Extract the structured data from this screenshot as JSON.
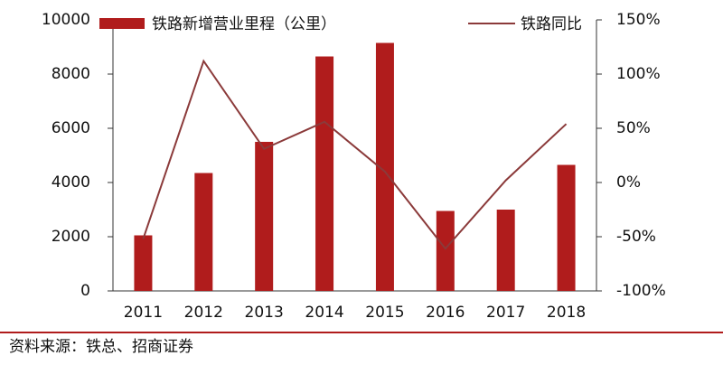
{
  "chart_data": {
    "type": "bar_line",
    "categories": [
      "2011",
      "2012",
      "2013",
      "2014",
      "2015",
      "2016",
      "2017",
      "2018"
    ],
    "series": [
      {
        "name": "铁路新增营业里程（公里）",
        "type": "bar",
        "color": "#b01c1c",
        "values": [
          2050,
          4350,
          5500,
          8650,
          9150,
          2950,
          3000,
          4650
        ]
      },
      {
        "name": "铁路同比",
        "type": "line",
        "axis": "y2",
        "color": "#8b3a3a",
        "values": [
          -52,
          112,
          31,
          56,
          10,
          -61,
          2,
          54
        ]
      }
    ],
    "ylim": [
      0,
      10000
    ],
    "yticks": [
      0,
      2000,
      4000,
      6000,
      8000,
      10000
    ],
    "y2lim": [
      -100,
      150
    ],
    "y2ticks": [
      {
        "value": -100,
        "label": "-100%"
      },
      {
        "value": -50,
        "label": "-50%"
      },
      {
        "value": 0,
        "label": "0%"
      },
      {
        "value": 50,
        "label": "50%"
      },
      {
        "value": 100,
        "label": "100%"
      },
      {
        "value": 150,
        "label": "150%"
      }
    ],
    "source": "资料来源：铁总、招商证券"
  }
}
